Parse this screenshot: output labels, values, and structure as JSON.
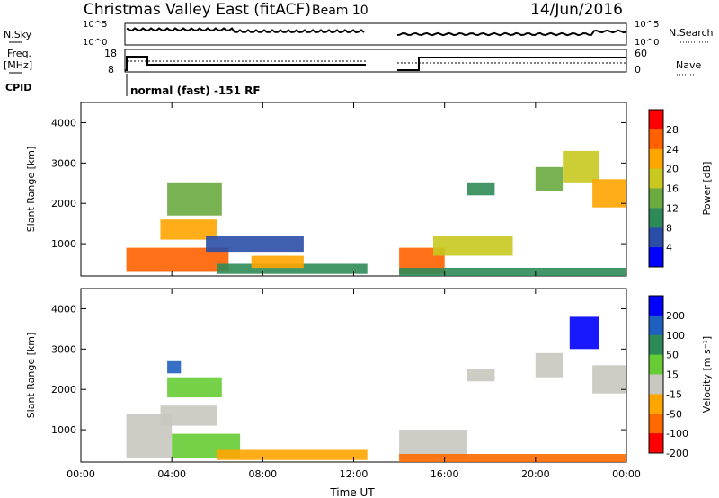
{
  "header": {
    "title": "Christmas Valley East (fitACF)",
    "beam": "Beam 10",
    "date": "14/Jun/2016"
  },
  "status_panels": {
    "nsky_label": "N.Sky",
    "nsky_ticks": [
      "10^5",
      "10^0"
    ],
    "nsearch_label": "N.Search",
    "nsearch_ticks": [
      "10^5",
      "10^0"
    ],
    "freq_label": "Freq.",
    "freq_unit": "[MHz]",
    "freq_ticks": [
      "18",
      "8"
    ],
    "nave_label": "Nave",
    "nave_ticks": [
      "60",
      "0"
    ],
    "cpid_label": "CPID",
    "cpid_value": "normal (fast) -151 RF"
  },
  "colors": {
    "power_scale": [
      "#0000ff",
      "#2a4ea8",
      "#2e8b57",
      "#6aaa40",
      "#c8c820",
      "#ffa500",
      "#ff6000",
      "#ff0000"
    ],
    "velocity_scale": [
      "#0000ff",
      "#1f5fc0",
      "#2e8b57",
      "#66cc33",
      "#c8c8c0",
      "#ffa500",
      "#ff6a00",
      "#ff0000"
    ],
    "ground_scatter": "#c8c8c0"
  },
  "chart_data": [
    {
      "type": "heatmap",
      "quantity": "Power",
      "ylabel": "Slant Range [km]",
      "ylim": [
        200,
        4500
      ],
      "yticks": [
        "1000",
        "2000",
        "3000",
        "4000"
      ],
      "xticks": [
        "00:00",
        "04:00",
        "08:00",
        "12:00",
        "16:00",
        "20:00",
        "00:00"
      ],
      "colorbar": {
        "label": "Power [dB]",
        "ticks": [
          "4",
          "8",
          "12",
          "16",
          "20",
          "24",
          "28"
        ]
      },
      "data_gaps": [
        [
          "00:00",
          "02:00"
        ],
        [
          "12:40",
          "14:00"
        ]
      ],
      "regions": [
        {
          "t0": 2.0,
          "t1": 6.5,
          "r0": 300,
          "r1": 900,
          "p": 26
        },
        {
          "t0": 3.5,
          "t1": 6.0,
          "r0": 1100,
          "r1": 1600,
          "p": 22
        },
        {
          "t0": 3.8,
          "t1": 6.2,
          "r0": 1700,
          "r1": 2500,
          "p": 14
        },
        {
          "t0": 5.5,
          "t1": 9.8,
          "r0": 800,
          "r1": 1200,
          "p": 8
        },
        {
          "t0": 6.0,
          "t1": 12.6,
          "r0": 250,
          "r1": 500,
          "p": 12
        },
        {
          "t0": 7.5,
          "t1": 9.8,
          "r0": 400,
          "r1": 700,
          "p": 24
        },
        {
          "t0": 14.0,
          "t1": 16.0,
          "r0": 250,
          "r1": 900,
          "p": 27
        },
        {
          "t0": 15.5,
          "t1": 19.0,
          "r0": 700,
          "r1": 1200,
          "p": 18
        },
        {
          "t0": 14.0,
          "t1": 24.0,
          "r0": 200,
          "r1": 400,
          "p": 10
        },
        {
          "t0": 17.0,
          "t1": 18.2,
          "r0": 2200,
          "r1": 2500,
          "p": 12
        },
        {
          "t0": 20.0,
          "t1": 21.2,
          "r0": 2300,
          "r1": 2900,
          "p": 14
        },
        {
          "t0": 21.2,
          "t1": 22.8,
          "r0": 2500,
          "r1": 3300,
          "p": 18
        },
        {
          "t0": 22.5,
          "t1": 24.0,
          "r0": 1900,
          "r1": 2600,
          "p": 24
        }
      ]
    },
    {
      "type": "heatmap",
      "quantity": "Velocity",
      "ylabel": "Slant Range [km]",
      "ylim": [
        200,
        4500
      ],
      "yticks": [
        "1000",
        "2000",
        "3000",
        "4000"
      ],
      "xticks": [
        "00:00",
        "04:00",
        "08:00",
        "12:00",
        "16:00",
        "20:00",
        "00:00"
      ],
      "xlabel": "Time UT",
      "colorbar": {
        "label": "Velocity [m s⁻¹]",
        "ticks": [
          "200",
          "100",
          "50",
          "15",
          "-15",
          "-50",
          "-100",
          "-200"
        ]
      },
      "data_gaps": [
        [
          "00:00",
          "02:00"
        ],
        [
          "12:40",
          "14:00"
        ]
      ],
      "regions": [
        {
          "t0": 2.0,
          "t1": 4.0,
          "r0": 300,
          "r1": 1400,
          "v": 0
        },
        {
          "t0": 4.0,
          "t1": 7.0,
          "r0": 300,
          "r1": 900,
          "v": 30
        },
        {
          "t0": 3.5,
          "t1": 6.0,
          "r0": 1100,
          "r1": 1600,
          "v": 0
        },
        {
          "t0": 3.8,
          "t1": 6.2,
          "r0": 1800,
          "r1": 2300,
          "v": 40
        },
        {
          "t0": 3.8,
          "t1": 4.4,
          "r0": 2400,
          "r1": 2700,
          "v": 180
        },
        {
          "t0": 6.0,
          "t1": 12.6,
          "r0": 250,
          "r1": 500,
          "v": -40
        },
        {
          "t0": 14.0,
          "t1": 17.0,
          "r0": 300,
          "r1": 1000,
          "v": 0
        },
        {
          "t0": 14.0,
          "t1": 24.0,
          "r0": 200,
          "r1": 400,
          "v": -60
        },
        {
          "t0": 17.0,
          "t1": 18.2,
          "r0": 2200,
          "r1": 2500,
          "v": 0
        },
        {
          "t0": 20.0,
          "t1": 21.2,
          "r0": 2300,
          "r1": 2900,
          "v": 0
        },
        {
          "t0": 21.5,
          "t1": 22.8,
          "r0": 3000,
          "r1": 3800,
          "v": 220
        },
        {
          "t0": 22.5,
          "t1": 24.0,
          "r0": 1900,
          "r1": 2600,
          "v": 0
        }
      ]
    }
  ]
}
